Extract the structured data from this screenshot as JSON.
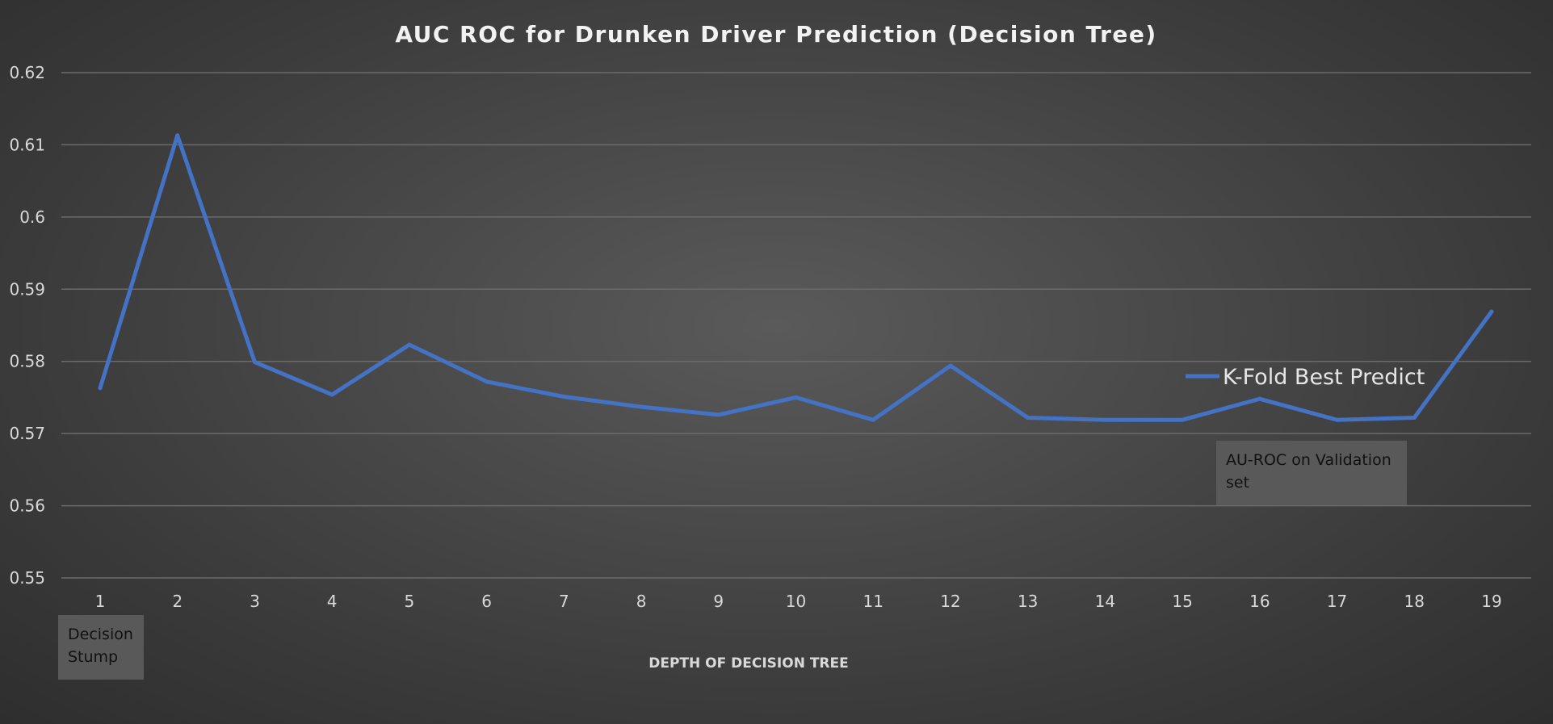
{
  "chart_data": {
    "type": "line",
    "title": "AUC ROC for Drunken Driver Prediction (Decision Tree)",
    "xlabel": "DEPTH OF DECISION TREE",
    "ylabel": "",
    "categories": [
      "1",
      "2",
      "3",
      "4",
      "5",
      "6",
      "7",
      "8",
      "9",
      "10",
      "11",
      "12",
      "13",
      "14",
      "15",
      "16",
      "17",
      "18",
      "19"
    ],
    "ylim": [
      0.55,
      0.62
    ],
    "yticks": [
      "0.62",
      "0.61",
      "0.6",
      "0.59",
      "0.58",
      "0.57",
      "0.56",
      "0.55"
    ],
    "grid": true,
    "legend_position": "right",
    "series": [
      {
        "name": "K-Fold Best Predict",
        "color": "#4472c4",
        "values": [
          0.5763,
          0.6113,
          0.5799,
          0.5754,
          0.5823,
          0.5772,
          0.5751,
          0.5737,
          0.5726,
          0.575,
          0.5719,
          0.5794,
          0.5722,
          0.5719,
          0.5719,
          0.5748,
          0.5719,
          0.5722,
          0.5869
        ]
      }
    ],
    "annotations": [
      {
        "text": "Decision Stump",
        "near_x": "1"
      },
      {
        "text": "AU-ROC on Validation set",
        "near_x": "16"
      }
    ]
  },
  "colors": {
    "series_line": "#4472c4",
    "grid": "#6b6b6b",
    "text": "#d9d9d9",
    "note_box": "#595959"
  }
}
